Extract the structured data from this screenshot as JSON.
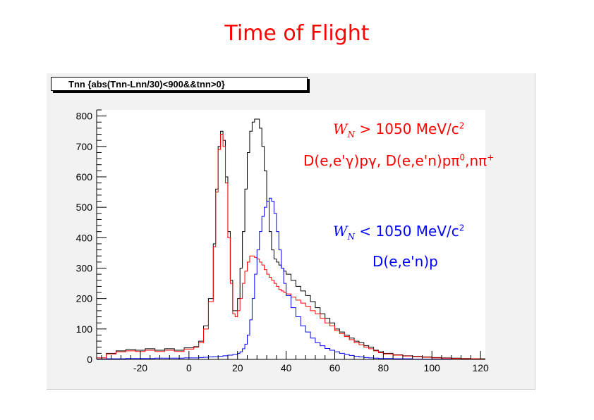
{
  "title": "Time of Flight",
  "stat_box_label": "Tnn {abs(Tnn-Lnn/30)<900&&tnn>0}",
  "colors": {
    "black": "#000000",
    "red": "#ff0000",
    "blue": "#0000ff",
    "frame": "#f2f2f2"
  },
  "annotations": {
    "red_cut_w": "W",
    "red_cut_sub": "N",
    "red_cut_text": "> 1050 MeV/c",
    "red_cut_sup": "2",
    "red_reactions_a": "D(e,e'",
    "red_reactions_gamma": "γ",
    "red_reactions_b": ")p",
    "red_reactions_gamma2": "γ",
    "red_reactions_c": ", D(e,e'n)p",
    "red_reactions_pi": "π",
    "red_reactions_pi_sup": "0",
    "red_reactions_d": ",n",
    "red_reactions_pi2": "π",
    "red_reactions_pi2_sup": "+",
    "blue_cut_w": "W",
    "blue_cut_sub": "N",
    "blue_cut_text": "< 1050 MeV/c",
    "blue_cut_sup": "2",
    "blue_reaction": "D(e,e'n)p"
  },
  "chart_data": {
    "type": "line",
    "step": true,
    "title": "Time of Flight",
    "xlabel": "",
    "ylabel": "",
    "xlim": [
      -38,
      122
    ],
    "ylim": [
      0,
      820
    ],
    "xticks": [
      -20,
      0,
      20,
      40,
      60,
      80,
      100,
      120
    ],
    "yticks": [
      0,
      100,
      200,
      300,
      400,
      500,
      600,
      700,
      800
    ],
    "grid": false,
    "series": [
      {
        "color": "#000000",
        "x": [
          -38,
          -34,
          -30,
          -26,
          -22,
          -18,
          -14,
          -10,
          -6,
          -2,
          2,
          4,
          6,
          8,
          10,
          11,
          12,
          13,
          14,
          15,
          16,
          17,
          18,
          19,
          20,
          21,
          22,
          23,
          24,
          25,
          26,
          27,
          28,
          29,
          30,
          31,
          32,
          33,
          34,
          35,
          36,
          37,
          38,
          39,
          40,
          42,
          44,
          46,
          48,
          50,
          52,
          54,
          56,
          58,
          60,
          62,
          64,
          66,
          68,
          70,
          72,
          74,
          76,
          78,
          80,
          84,
          88,
          92,
          96,
          100,
          104,
          108,
          112,
          116,
          120
        ],
        "values": [
          5,
          20,
          28,
          32,
          30,
          35,
          30,
          35,
          30,
          38,
          42,
          60,
          110,
          200,
          380,
          560,
          700,
          750,
          720,
          600,
          420,
          260,
          160,
          160,
          200,
          300,
          420,
          560,
          680,
          750,
          780,
          790,
          790,
          760,
          700,
          620,
          520,
          420,
          360,
          330,
          320,
          310,
          300,
          290,
          280,
          260,
          240,
          225,
          210,
          190,
          170,
          150,
          135,
          120,
          100,
          90,
          80,
          70,
          60,
          55,
          45,
          40,
          30,
          25,
          20,
          15,
          12,
          10,
          8,
          6,
          5,
          4,
          3,
          2,
          2
        ]
      },
      {
        "color": "#ff0000",
        "x": [
          -38,
          -34,
          -30,
          -26,
          -22,
          -18,
          -14,
          -10,
          -6,
          -2,
          2,
          4,
          6,
          8,
          10,
          11,
          12,
          13,
          14,
          15,
          16,
          17,
          18,
          19,
          20,
          21,
          22,
          23,
          24,
          25,
          26,
          27,
          28,
          29,
          30,
          31,
          32,
          33,
          34,
          35,
          36,
          37,
          38,
          39,
          40,
          42,
          44,
          46,
          48,
          50,
          52,
          54,
          56,
          58,
          60,
          62,
          64,
          66,
          68,
          70,
          72,
          74,
          76,
          78,
          80,
          84,
          88,
          92,
          96,
          100,
          104,
          108,
          112,
          116,
          120
        ],
        "values": [
          5,
          18,
          25,
          28,
          26,
          30,
          26,
          30,
          26,
          34,
          40,
          55,
          100,
          190,
          370,
          550,
          690,
          740,
          700,
          580,
          400,
          250,
          150,
          140,
          160,
          200,
          250,
          290,
          320,
          340,
          340,
          335,
          330,
          320,
          310,
          295,
          280,
          270,
          260,
          250,
          240,
          230,
          225,
          220,
          215,
          205,
          195,
          185,
          175,
          160,
          150,
          135,
          120,
          110,
          95,
          85,
          75,
          65,
          55,
          48,
          40,
          35,
          28,
          22,
          18,
          14,
          11,
          9,
          7,
          5,
          4,
          3,
          2,
          2,
          1
        ]
      },
      {
        "color": "#0000ff",
        "x": [
          -38,
          -34,
          -30,
          -26,
          -22,
          -18,
          -14,
          -10,
          -6,
          -2,
          2,
          4,
          6,
          8,
          10,
          12,
          14,
          16,
          18,
          20,
          21,
          22,
          23,
          24,
          25,
          26,
          27,
          28,
          29,
          30,
          31,
          32,
          33,
          34,
          35,
          36,
          37,
          38,
          39,
          40,
          42,
          44,
          46,
          48,
          50,
          52,
          54,
          56,
          58,
          60,
          62,
          64,
          66,
          68,
          70,
          72,
          74,
          76,
          78,
          80,
          84,
          88,
          92,
          96,
          100,
          104,
          108,
          112,
          116,
          120
        ],
        "values": [
          1,
          2,
          2,
          3,
          3,
          3,
          4,
          4,
          4,
          5,
          5,
          6,
          7,
          8,
          9,
          10,
          12,
          14,
          16,
          20,
          25,
          35,
          50,
          80,
          130,
          200,
          280,
          360,
          420,
          470,
          500,
          520,
          530,
          520,
          480,
          420,
          360,
          300,
          250,
          210,
          170,
          140,
          110,
          90,
          70,
          55,
          45,
          36,
          30,
          25,
          20,
          16,
          13,
          10,
          8,
          6,
          5,
          4,
          3,
          3,
          2,
          2,
          1,
          1,
          1,
          1,
          0,
          0,
          0,
          0
        ]
      }
    ]
  }
}
